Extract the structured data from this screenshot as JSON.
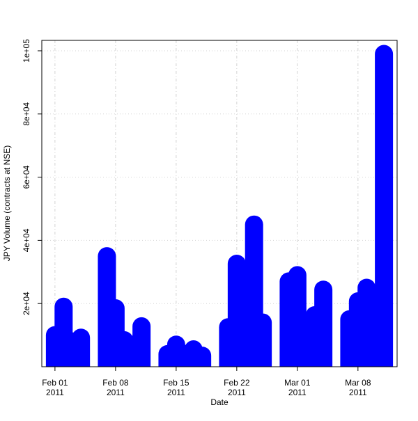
{
  "chart_data": {
    "type": "bar",
    "title": null,
    "x_label": "Date",
    "y_label": "JPY Volume (contracts at NSE)",
    "x": [
      "2011-02-01",
      "2011-02-02",
      "2011-02-03",
      "2011-02-04",
      "2011-02-07",
      "2011-02-08",
      "2011-02-09",
      "2011-02-10",
      "2011-02-11",
      "2011-02-14",
      "2011-02-15",
      "2011-02-16",
      "2011-02-17",
      "2011-02-18",
      "2011-02-21",
      "2011-02-22",
      "2011-02-23",
      "2011-02-24",
      "2011-02-25",
      "2011-02-28",
      "2011-03-01",
      "2011-03-02",
      "2011-03-03",
      "2011-03-04",
      "2011-03-07",
      "2011-03-08",
      "2011-03-09",
      "2011-03-11"
    ],
    "values": [
      10000,
      19000,
      8000,
      9200,
      35000,
      18500,
      8400,
      7000,
      12800,
      4000,
      7000,
      4000,
      5500,
      3500,
      12500,
      32600,
      20000,
      45000,
      14000,
      27000,
      29000,
      10000,
      16300,
      24400,
      15000,
      20700,
      25000,
      99000
    ],
    "color": "#0000ff",
    "xlim": [
      "2011-01-30T11:31:00",
      "2011-03-12T12:29:00"
    ],
    "xticks": [
      {
        "value": "2011-02-01",
        "label": "Feb 01\n2011"
      },
      {
        "value": "2011-02-08",
        "label": "Feb 08\n2011"
      },
      {
        "value": "2011-02-15",
        "label": "Feb 15\n2011"
      },
      {
        "value": "2011-02-22",
        "label": "Feb 22\n2011"
      },
      {
        "value": "2011-03-01",
        "label": "Mar 01\n2011"
      },
      {
        "value": "2011-03-08",
        "label": "Mar 08\n2011"
      }
    ],
    "ylim": [
      0,
      103300
    ],
    "yticks": [
      {
        "value": 20000,
        "label": "2e+04"
      },
      {
        "value": 40000,
        "label": "4e+04"
      },
      {
        "value": 60000,
        "label": "6e+04"
      },
      {
        "value": 80000,
        "label": "8e+04"
      },
      {
        "value": 100000,
        "label": "1e+05"
      }
    ],
    "grid": true
  }
}
